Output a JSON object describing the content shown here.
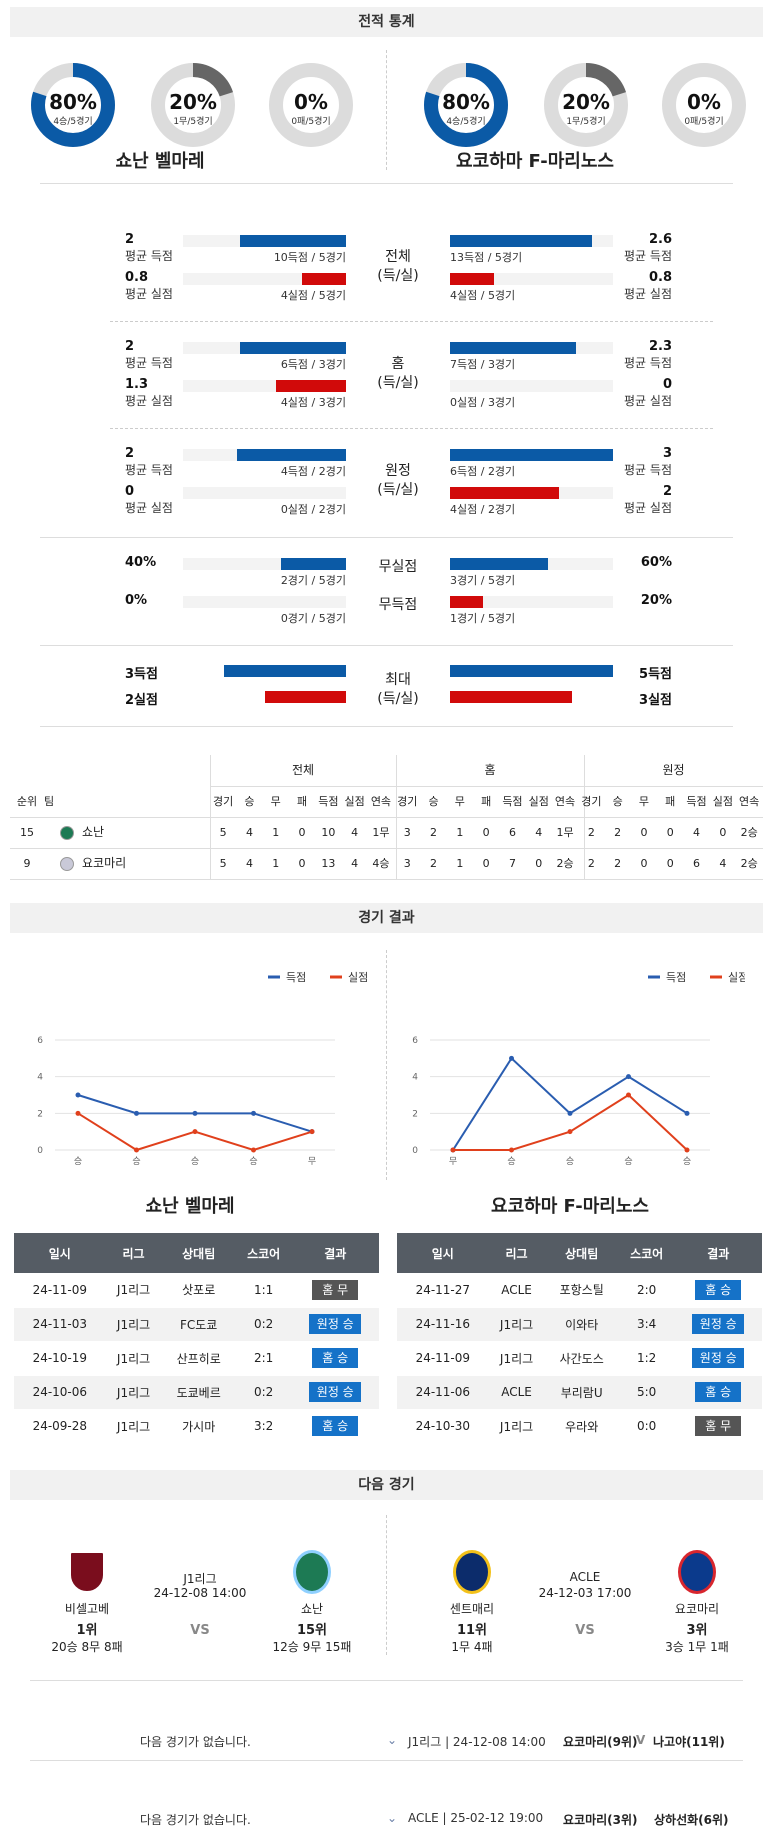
{
  "stats_header": "전적 통계",
  "donuts": [
    {
      "pct": "80%",
      "sub": "4승/5경기",
      "value": 0.8,
      "color": "#0b5aa6"
    },
    {
      "pct": "20%",
      "sub": "1무/5경기",
      "value": 0.2,
      "color": "#666666"
    },
    {
      "pct": "0%",
      "sub": "0패/5경기",
      "value": 0.0,
      "color": "#d10a0a"
    },
    {
      "pct": "80%",
      "sub": "4승/5경기",
      "value": 0.8,
      "color": "#0b5aa6"
    },
    {
      "pct": "20%",
      "sub": "1무/5경기",
      "value": 0.2,
      "color": "#666666"
    },
    {
      "pct": "0%",
      "sub": "0패/5경기",
      "value": 0.0,
      "color": "#d10a0a"
    }
  ],
  "team_left": "쇼난 벨마레",
  "team_right": "요코하마 F-마리노스",
  "stat_groups": [
    {
      "center": [
        "전체",
        "(득/실)"
      ],
      "left": [
        {
          "num": "2",
          "lbl": "평균 득점",
          "detail": "10득점 / 5경기",
          "fill": 0.65,
          "color": "blue"
        },
        {
          "num": "0.8",
          "lbl": "평균 실점",
          "detail": "4실점 / 5경기",
          "fill": 0.27,
          "color": "red"
        }
      ],
      "right": [
        {
          "num": "2.6",
          "lbl": "평균 득점",
          "detail": "13득점 / 5경기",
          "fill": 0.87,
          "color": "blue"
        },
        {
          "num": "0.8",
          "lbl": "평균 실점",
          "detail": "4실점 / 5경기",
          "fill": 0.27,
          "color": "red"
        }
      ]
    },
    {
      "center": [
        "홈",
        "(득/실)"
      ],
      "left": [
        {
          "num": "2",
          "lbl": "평균 득점",
          "detail": "6득점 / 3경기",
          "fill": 0.65,
          "color": "blue"
        },
        {
          "num": "1.3",
          "lbl": "평균 실점",
          "detail": "4실점 / 3경기",
          "fill": 0.43,
          "color": "red"
        }
      ],
      "right": [
        {
          "num": "2.3",
          "lbl": "평균 득점",
          "detail": "7득점 / 3경기",
          "fill": 0.77,
          "color": "blue"
        },
        {
          "num": "0",
          "lbl": "평균 실점",
          "detail": "0실점 / 3경기",
          "fill": 0.0,
          "color": "red"
        }
      ]
    },
    {
      "center": [
        "원정",
        "(득/실)"
      ],
      "left": [
        {
          "num": "2",
          "lbl": "평균 득점",
          "detail": "4득점 / 2경기",
          "fill": 0.67,
          "color": "blue"
        },
        {
          "num": "0",
          "lbl": "평균 실점",
          "detail": "0실점 / 2경기",
          "fill": 0.0,
          "color": "red"
        }
      ],
      "right": [
        {
          "num": "3",
          "lbl": "평균 득점",
          "detail": "6득점 / 2경기",
          "fill": 1.0,
          "color": "blue"
        },
        {
          "num": "2",
          "lbl": "평균 실점",
          "detail": "4실점 / 2경기",
          "fill": 0.67,
          "color": "red"
        }
      ]
    }
  ],
  "cleansheet": {
    "labels": [
      "무실점",
      "무득점"
    ],
    "left": [
      {
        "num": "40%",
        "detail": "2경기 / 5경기",
        "fill": 0.4,
        "color": "blue"
      },
      {
        "num": "0%",
        "detail": "0경기 / 5경기",
        "fill": 0.0,
        "color": "red"
      }
    ],
    "right": [
      {
        "num": "60%",
        "detail": "3경기 / 5경기",
        "fill": 0.6,
        "color": "blue"
      },
      {
        "num": "20%",
        "detail": "1경기 / 5경기",
        "fill": 0.2,
        "color": "red"
      }
    ]
  },
  "max": {
    "center": [
      "최대",
      "(득/실)"
    ],
    "left": [
      {
        "num": "3득점",
        "fill": 0.75,
        "color": "blue"
      },
      {
        "num": "2실점",
        "fill": 0.5,
        "color": "red"
      }
    ],
    "right": [
      {
        "num": "5득점",
        "fill": 1.0,
        "color": "blue"
      },
      {
        "num": "3실점",
        "fill": 0.75,
        "color": "red"
      }
    ]
  },
  "rank_table": {
    "groups": [
      "전체",
      "홈",
      "원정"
    ],
    "head": [
      "순위",
      "팀",
      "경기",
      "승",
      "무",
      "패",
      "득점",
      "실점",
      "연속",
      "경기",
      "승",
      "무",
      "패",
      "득점",
      "실점",
      "연속",
      "경기",
      "승",
      "무",
      "패",
      "득점",
      "실점",
      "연속"
    ],
    "rows": [
      [
        "15",
        "쇼난",
        "5",
        "4",
        "1",
        "0",
        "10",
        "4",
        "1무",
        "3",
        "2",
        "1",
        "0",
        "6",
        "4",
        "1무",
        "2",
        "2",
        "0",
        "0",
        "4",
        "0",
        "2승"
      ],
      [
        "9",
        "요코마리",
        "5",
        "4",
        "1",
        "0",
        "13",
        "4",
        "4승",
        "3",
        "2",
        "1",
        "0",
        "7",
        "0",
        "2승",
        "2",
        "2",
        "0",
        "0",
        "6",
        "4",
        "2승"
      ]
    ]
  },
  "results_header": "경기 결과",
  "legend": {
    "scored": "득점",
    "conceded": "실점"
  },
  "chart_data": [
    {
      "type": "line",
      "categories": [
        "승",
        "승",
        "승",
        "승",
        "무"
      ],
      "ylim": [
        0,
        6
      ],
      "yticks": [
        "0",
        "2",
        "4",
        "6"
      ],
      "series": [
        {
          "name": "득점",
          "values": [
            3,
            2,
            2,
            2,
            1
          ],
          "color": "#2a5db0"
        },
        {
          "name": "실점",
          "values": [
            2,
            0,
            1,
            0,
            1
          ],
          "color": "#e0401c"
        }
      ]
    },
    {
      "type": "line",
      "categories": [
        "무",
        "승",
        "승",
        "승",
        "승"
      ],
      "ylim": [
        0,
        6
      ],
      "yticks": [
        "0",
        "2",
        "4",
        "6"
      ],
      "series": [
        {
          "name": "득점",
          "values": [
            0,
            5,
            2,
            4,
            2
          ],
          "color": "#2a5db0"
        },
        {
          "name": "실점",
          "values": [
            0,
            0,
            1,
            3,
            0
          ],
          "color": "#e0401c"
        }
      ]
    }
  ],
  "results": {
    "head": [
      "일시",
      "리그",
      "상대팀",
      "스코어",
      "결과"
    ],
    "left": [
      [
        "24-11-09",
        "J1리그",
        "삿포로",
        "1:1",
        "홈 무",
        "draw"
      ],
      [
        "24-11-03",
        "J1리그",
        "FC도쿄",
        "0:2",
        "원정 승",
        "win"
      ],
      [
        "24-10-19",
        "J1리그",
        "산프히로",
        "2:1",
        "홈 승",
        "win"
      ],
      [
        "24-10-06",
        "J1리그",
        "도쿄베르",
        "0:2",
        "원정 승",
        "win"
      ],
      [
        "24-09-28",
        "J1리그",
        "가시마",
        "3:2",
        "홈 승",
        "win"
      ]
    ],
    "right": [
      [
        "24-11-27",
        "ACLE",
        "포항스틸",
        "2:0",
        "홈 승",
        "win"
      ],
      [
        "24-11-16",
        "J1리그",
        "이와타",
        "3:4",
        "원정 승",
        "win"
      ],
      [
        "24-11-09",
        "J1리그",
        "사간도스",
        "1:2",
        "원정 승",
        "win"
      ],
      [
        "24-11-06",
        "ACLE",
        "부리람U",
        "5:0",
        "홈 승",
        "win"
      ],
      [
        "24-10-30",
        "J1리그",
        "우라와",
        "0:0",
        "홈 무",
        "draw"
      ]
    ]
  },
  "next_header": "다음 경기",
  "next_matches": [
    {
      "league": "J1리그",
      "datetime": "24-12-08 14:00",
      "vs": "VS",
      "home": {
        "name": "비셀고베",
        "rank": "1위",
        "record": "20승 8무 8패"
      },
      "away": {
        "name": "쇼난",
        "rank": "15위",
        "record": "12승 9무 15패"
      }
    },
    {
      "league": "ACLE",
      "datetime": "24-12-03 17:00",
      "vs": "VS",
      "home": {
        "name": "센트매리",
        "rank": "11위",
        "record": "1무 4패"
      },
      "away": {
        "name": "요코마리",
        "rank": "3위",
        "record": "3승 1무 1패"
      }
    }
  ],
  "upcoming": [
    {
      "none": "다음 경기가 없습니다.",
      "info": "J1리그 | 24-12-08 14:00",
      "home": "요코마리(9위)",
      "vs": "V",
      "away": "나고야(11위)"
    },
    {
      "none": "다음 경기가 없습니다.",
      "info": "ACLE | 25-02-12 19:00",
      "home": "요코마리(3위)",
      "vs": "",
      "away": "상하선화(6위)"
    }
  ]
}
